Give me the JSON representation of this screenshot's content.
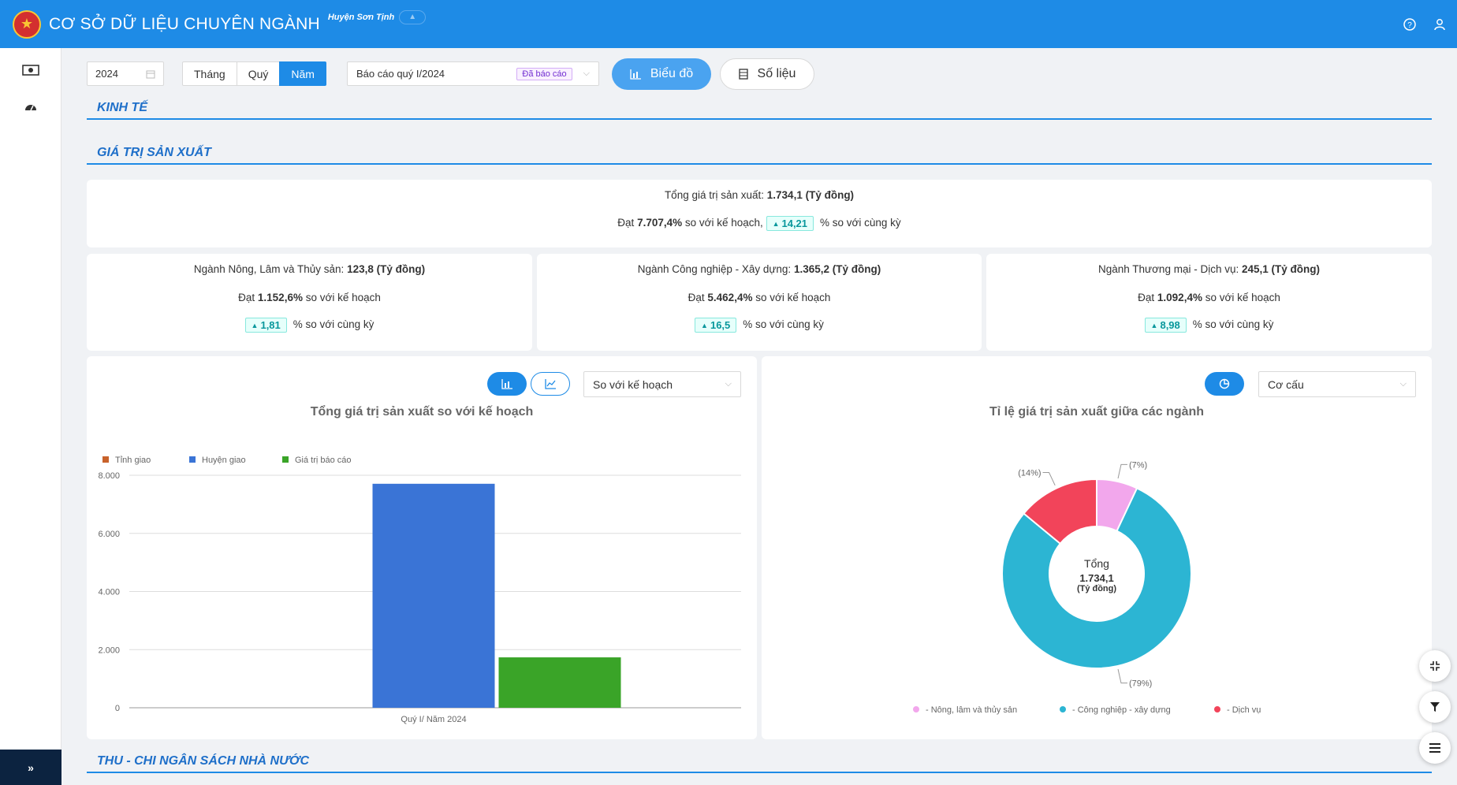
{
  "header": {
    "title": "CƠ SỞ DỮ LIỆU CHUYÊN NGÀNH",
    "subtitle": "Huyện Sơn Tịnh",
    "help_icon": "question-circle-icon",
    "user_icon": "user-icon",
    "primary_color": "#1e8be6"
  },
  "sidebar": {
    "items": [
      {
        "icon": "money-icon"
      },
      {
        "icon": "dashboard-icon"
      }
    ],
    "expand_label": "»"
  },
  "toolbar": {
    "year": "2024",
    "period_tabs": [
      "Tháng",
      "Quý",
      "Năm"
    ],
    "active_period": "Năm",
    "report_value": "Báo cáo quý I/2024",
    "report_status": "Đã báo cáo",
    "chart_button": "Biểu đồ",
    "data_button": "Số liệu"
  },
  "sections": {
    "economy": "KINH TẾ",
    "production": "GIÁ TRỊ SẢN XUẤT",
    "budget": "THU - CHI NGÂN SÁCH NHÀ NƯỚC"
  },
  "summary": {
    "total_label": "Tổng giá trị sản xuất:",
    "total_value": "1.734,1 (Tỷ đồng)",
    "plan_prefix": "Đạt",
    "plan_value": "7.707,4%",
    "plan_suffix": "so với kế hoạch,",
    "yoy_value": "14,21",
    "yoy_suffix": "% so với cùng kỳ"
  },
  "sectors": [
    {
      "label": "Ngành Nông, Lâm và Thủy sản:",
      "value": "123,8 (Tỷ đồng)",
      "plan_prefix": "Đạt",
      "plan_value": "1.152,6%",
      "plan_suffix": "so với kế hoạch",
      "yoy_value": "1,81",
      "yoy_suffix": "% so với cùng kỳ"
    },
    {
      "label": "Ngành Công nghiệp - Xây dựng:",
      "value": "1.365,2 (Tỷ đồng)",
      "plan_prefix": "Đạt",
      "plan_value": "5.462,4%",
      "plan_suffix": "so với kế hoạch",
      "yoy_value": "16,5",
      "yoy_suffix": "% so với cùng kỳ"
    },
    {
      "label": "Ngành Thương mại - Dịch vụ:",
      "value": "245,1 (Tỷ đồng)",
      "plan_prefix": "Đạt",
      "plan_value": "1.092,4%",
      "plan_suffix": "so với kế hoạch",
      "yoy_value": "8,98",
      "yoy_suffix": "% so với cùng kỳ"
    }
  ],
  "bar_panel": {
    "title": "Tổng giá trị sản xuất so với kế hoạch",
    "select_value": "So với kế hoạch",
    "bar_icon": "bar-chart-icon",
    "line_icon": "line-chart-icon"
  },
  "pie_panel": {
    "title": "Tỉ lệ giá trị sản xuất giữa các ngành",
    "select_value": "Cơ cấu",
    "pie_icon": "pie-chart-icon",
    "center_label": "Tổng",
    "center_value": "1.734,1",
    "center_unit": "(Tỷ đồng)"
  },
  "chart_data": [
    {
      "type": "bar",
      "title": "Tổng giá trị sản xuất so với kế hoạch",
      "categories": [
        "Quý I/ Năm 2024"
      ],
      "series": [
        {
          "name": "Tỉnh giao",
          "color": "#c8622b",
          "values": [
            0
          ]
        },
        {
          "name": "Huyện giao",
          "color": "#3a74d6",
          "values": [
            7707
          ]
        },
        {
          "name": "Giá trị báo cáo",
          "color": "#3aa428",
          "values": [
            1734.1
          ]
        }
      ],
      "ylim": [
        0,
        8000
      ],
      "yticks": [
        "0",
        "2.000",
        "4.000",
        "6.000",
        "8.000"
      ],
      "grid": true,
      "legend": "top-left"
    },
    {
      "type": "pie",
      "title": "Tỉ lệ giá trị sản xuất giữa các ngành",
      "slices": [
        {
          "name": "- Nông, lâm và thủy sản",
          "value": 7,
          "label": "(7%)",
          "color": "#f2a7ec"
        },
        {
          "name": "- Công nghiệp - xây dựng",
          "value": 79,
          "label": "(79%)",
          "color": "#2cb5d3"
        },
        {
          "name": "- Dịch vụ",
          "value": 14,
          "label": "(14%)",
          "color": "#f2445a"
        }
      ],
      "legend": "bottom"
    }
  ],
  "float_buttons": [
    "compress-icon",
    "filter-icon",
    "menu-icon"
  ]
}
